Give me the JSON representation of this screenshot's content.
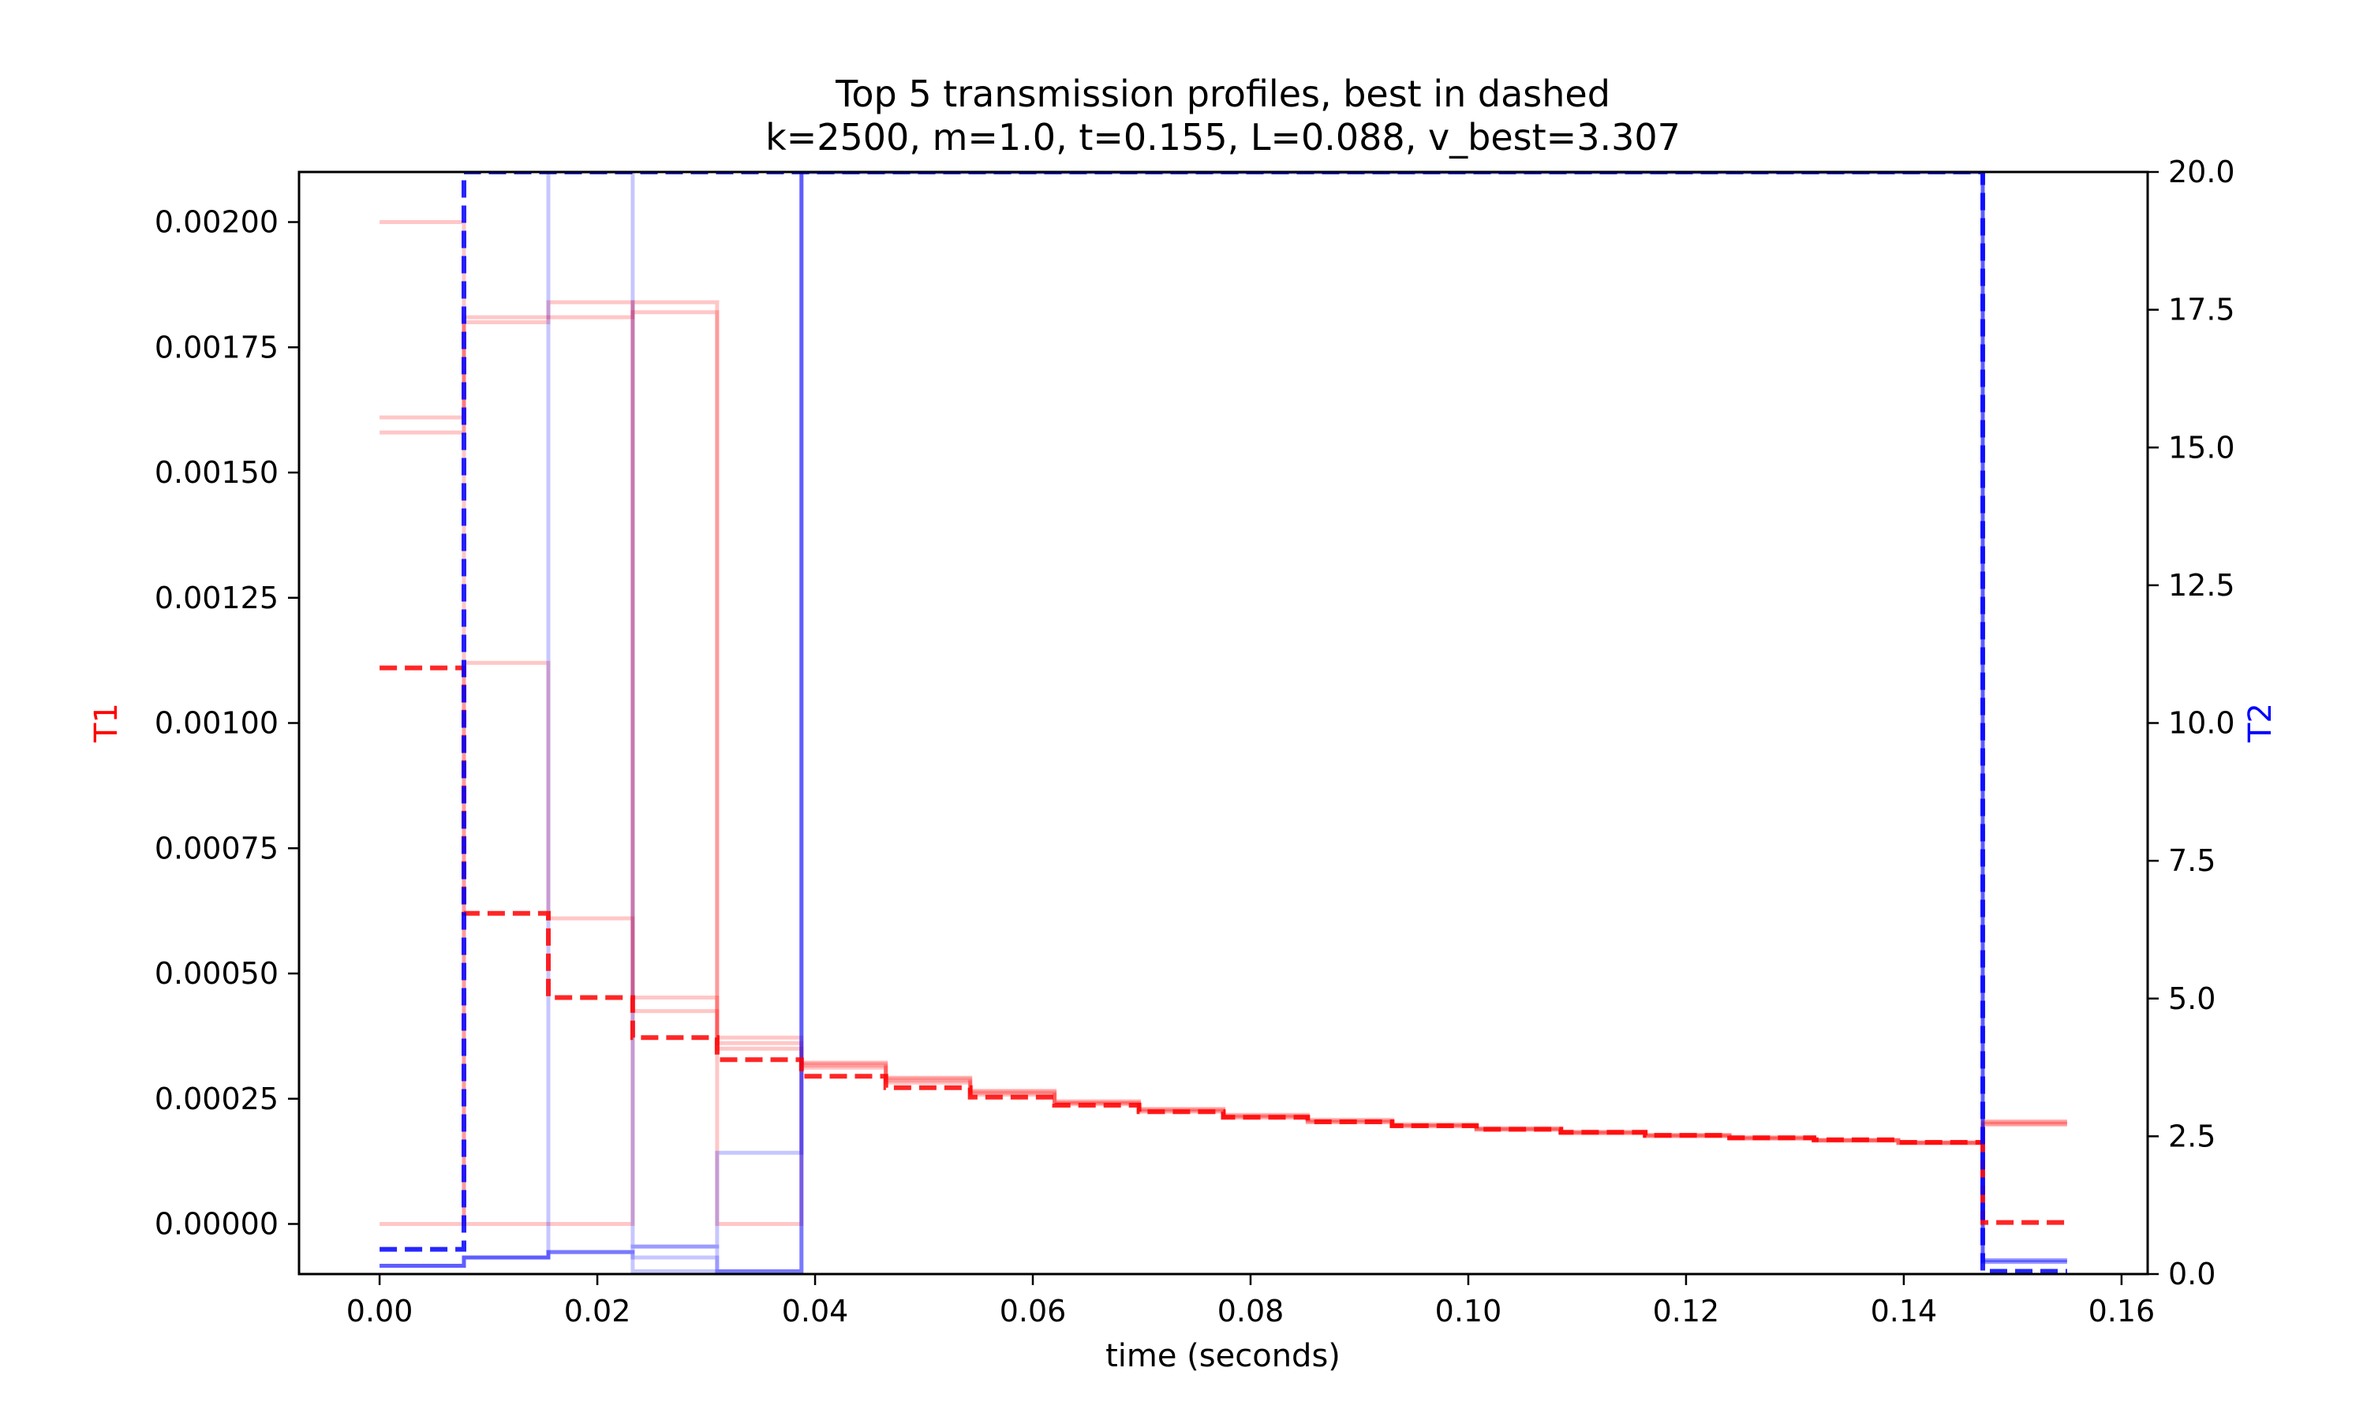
{
  "chart_data": {
    "type": "line",
    "title": "Top 5 transmission profiles, best in dashed",
    "subtitle": "k=2500, m=1.0, t=0.155, L=0.088, v_best=3.307",
    "xlabel": "time (seconds)",
    "ylabel_left": "T1",
    "ylabel_right": "T2",
    "xlim": [
      -0.0074,
      0.1624
    ],
    "ylim_left": [
      -0.0001,
      0.0021
    ],
    "ylim_right": [
      0,
      20
    ],
    "x_ticks": [
      "0.00",
      "0.02",
      "0.04",
      "0.06",
      "0.08",
      "0.10",
      "0.12",
      "0.14",
      "0.16"
    ],
    "y_left_ticks": [
      "0.00000",
      "0.00025",
      "0.00050",
      "0.00075",
      "0.00100",
      "0.00125",
      "0.00150",
      "0.00175",
      "0.00200"
    ],
    "y_right_ticks": [
      "0.0",
      "2.5",
      "5.0",
      "7.5",
      "10.0",
      "12.5",
      "15.0",
      "17.5",
      "20.0"
    ],
    "grid": false,
    "colors": {
      "T1": "#ff0000",
      "T2": "#0000ff",
      "axis_T1": "#ff0000",
      "axis_T2": "#0000ff"
    },
    "step_edges": [
      0,
      0.00775,
      0.0155,
      0.02325,
      0.031,
      0.03875,
      0.0465,
      0.05425,
      0.062,
      0.06975,
      0.0775,
      0.08525,
      0.093,
      0.10075,
      0.1085,
      0.11625,
      0.124,
      0.13175,
      0.1395,
      0.14725,
      0.155
    ],
    "T1_series": [
      {
        "best": true,
        "values": [
          0.00111,
          0.00062,
          0.000452,
          0.000372,
          0.000328,
          0.000295,
          0.000272,
          0.000253,
          0.000237,
          0.000224,
          0.000213,
          0.000204,
          0.000196,
          0.000189,
          0.000183,
          0.000177,
          0.000172,
          0.000168,
          0.000163,
          3e-06
        ]
      },
      {
        "best": false,
        "values": [
          0.002,
          0.0,
          0.0,
          0.00184,
          0.0,
          0.000322,
          0.000292,
          0.000266,
          0.000245,
          0.00023,
          0.000218,
          0.000208,
          0.000199,
          0.000191,
          0.000184,
          0.000178,
          0.000173,
          0.000168,
          0.000163,
          0.000203
        ]
      },
      {
        "best": false,
        "values": [
          0.00161,
          0.00181,
          0.00184,
          0.000452,
          0.000372,
          0.00032,
          0.00029,
          0.000264,
          0.000243,
          0.000228,
          0.000216,
          0.000206,
          0.000197,
          0.00019,
          0.000183,
          0.000177,
          0.000172,
          0.000167,
          0.000162,
          0.000205
        ]
      },
      {
        "best": false,
        "values": [
          0.00158,
          0.0018,
          0.00181,
          0.00182,
          0.000361,
          0.000316,
          0.000286,
          0.000261,
          0.000241,
          0.000226,
          0.000214,
          0.000204,
          0.000196,
          0.000189,
          0.000182,
          0.000176,
          0.000171,
          0.000167,
          0.000162,
          0.0002
        ]
      },
      {
        "best": false,
        "values": [
          0.0,
          0.00112,
          0.00061,
          0.000425,
          0.00035,
          0.000312,
          0.000282,
          0.000258,
          0.000239,
          0.000224,
          0.000212,
          0.000203,
          0.000195,
          0.000188,
          0.000181,
          0.000175,
          0.00017,
          0.000166,
          0.000161,
          0.000198
        ]
      }
    ],
    "T2_series": [
      {
        "best": true,
        "values": [
          0.45,
          20,
          20,
          20,
          20,
          20,
          20,
          20,
          20,
          20,
          20,
          20,
          20,
          20,
          20,
          20,
          20,
          20,
          20,
          0.05
        ]
      },
      {
        "best": false,
        "values": [
          0.15,
          0.3,
          20,
          0.5,
          2.2,
          20,
          20,
          20,
          20,
          20,
          20,
          20,
          20,
          20,
          20,
          20,
          20,
          20,
          20,
          0.25
        ]
      },
      {
        "best": false,
        "values": [
          0.15,
          0.3,
          0.4,
          0.5,
          0.05,
          20,
          20,
          20,
          20,
          20,
          20,
          20,
          20,
          20,
          20,
          20,
          20,
          20,
          20,
          0.25
        ]
      },
      {
        "best": false,
        "values": [
          0.15,
          0.3,
          0.4,
          0.05,
          0.05,
          20,
          20,
          20,
          20,
          20,
          20,
          20,
          20,
          20,
          20,
          20,
          20,
          20,
          20,
          0.22
        ]
      },
      {
        "best": false,
        "values": [
          0.15,
          0.3,
          0.4,
          0.3,
          0.05,
          20,
          20,
          20,
          20,
          20,
          20,
          20,
          20,
          20,
          20,
          20,
          20,
          20,
          20,
          0.22
        ]
      }
    ]
  }
}
